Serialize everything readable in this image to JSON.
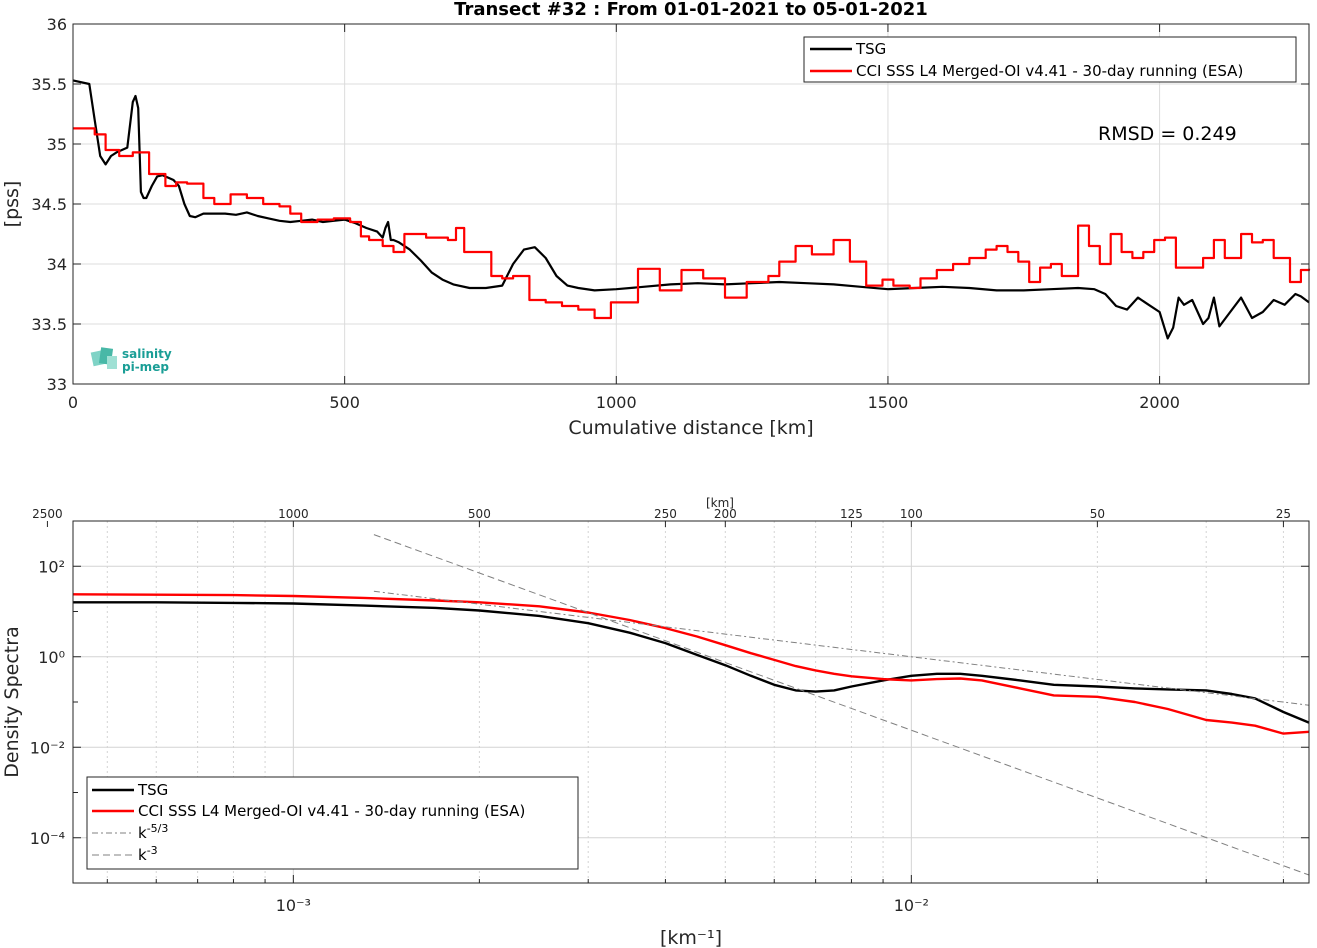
{
  "chart_data": [
    {
      "type": "line",
      "title": "Transect #32 : From 01-01-2021 to 05-01-2021",
      "xlabel": "Cumulative distance [km]",
      "ylabel": "[pss]",
      "xlim": [
        0,
        2275
      ],
      "ylim": [
        33,
        36
      ],
      "xticks": [
        "0",
        "500",
        "1000",
        "1500",
        "2000"
      ],
      "yticks": [
        "33",
        "33.5",
        "34",
        "34.5",
        "35",
        "35.5",
        "36"
      ],
      "grid": true,
      "legend_position": "top-right",
      "annotation": "RMSD = 0.249",
      "logo_text": [
        "salinity",
        "pi-mep"
      ],
      "series": [
        {
          "name": "TSG",
          "color": "#000000",
          "x": [
            0,
            30,
            40,
            50,
            60,
            70,
            80,
            90,
            100,
            110,
            115,
            120,
            125,
            130,
            135,
            145,
            155,
            165,
            175,
            185,
            195,
            205,
            215,
            225,
            240,
            260,
            280,
            300,
            320,
            340,
            360,
            380,
            400,
            420,
            440,
            460,
            480,
            500,
            520,
            540,
            560,
            570,
            575,
            580,
            585,
            590,
            600,
            620,
            640,
            660,
            680,
            700,
            730,
            760,
            790,
            810,
            830,
            850,
            870,
            890,
            910,
            930,
            960,
            1000,
            1050,
            1100,
            1150,
            1200,
            1250,
            1300,
            1350,
            1400,
            1450,
            1500,
            1550,
            1600,
            1650,
            1700,
            1750,
            1800,
            1850,
            1880,
            1900,
            1920,
            1940,
            1960,
            1980,
            2000,
            2015,
            2025,
            2035,
            2045,
            2060,
            2080,
            2090,
            2100,
            2110,
            2130,
            2150,
            2170,
            2190,
            2210,
            2230,
            2250,
            2260,
            2275
          ],
          "y": [
            35.53,
            35.5,
            35.2,
            34.9,
            34.83,
            34.9,
            34.93,
            34.95,
            34.97,
            35.35,
            35.4,
            35.3,
            34.6,
            34.55,
            34.55,
            34.65,
            34.73,
            34.74,
            34.72,
            34.7,
            34.65,
            34.5,
            34.4,
            34.39,
            34.42,
            34.42,
            34.42,
            34.41,
            34.43,
            34.4,
            34.38,
            34.36,
            34.35,
            34.36,
            34.37,
            34.35,
            34.36,
            34.37,
            34.34,
            34.3,
            34.27,
            34.22,
            34.3,
            34.35,
            34.2,
            34.2,
            34.18,
            34.12,
            34.03,
            33.93,
            33.87,
            33.83,
            33.8,
            33.8,
            33.82,
            34.0,
            34.12,
            34.14,
            34.05,
            33.9,
            33.82,
            33.8,
            33.78,
            33.79,
            33.81,
            33.83,
            33.84,
            33.83,
            33.84,
            33.85,
            33.84,
            33.83,
            33.81,
            33.79,
            33.8,
            33.81,
            33.8,
            33.78,
            33.78,
            33.79,
            33.8,
            33.79,
            33.75,
            33.65,
            33.62,
            33.72,
            33.66,
            33.6,
            33.38,
            33.47,
            33.72,
            33.66,
            33.7,
            33.5,
            33.55,
            33.72,
            33.48,
            33.6,
            33.72,
            33.55,
            33.6,
            33.7,
            33.66,
            33.75,
            33.73,
            33.68
          ]
        },
        {
          "name": "CCI SSS L4 Merged-OI v4.41 - 30-day running (ESA)",
          "color": "#ff0000",
          "step": true,
          "x": [
            0,
            40,
            60,
            85,
            110,
            140,
            170,
            190,
            210,
            240,
            260,
            290,
            320,
            350,
            380,
            400,
            420,
            450,
            480,
            510,
            530,
            545,
            570,
            590,
            610,
            650,
            690,
            705,
            720,
            770,
            790,
            810,
            840,
            870,
            900,
            930,
            960,
            990,
            1040,
            1080,
            1120,
            1160,
            1200,
            1240,
            1280,
            1300,
            1330,
            1360,
            1400,
            1430,
            1460,
            1490,
            1510,
            1540,
            1560,
            1590,
            1620,
            1650,
            1680,
            1700,
            1720,
            1740,
            1760,
            1780,
            1800,
            1820,
            1850,
            1870,
            1890,
            1910,
            1930,
            1950,
            1970,
            1990,
            2010,
            2030,
            2060,
            2080,
            2100,
            2120,
            2150,
            2170,
            2190,
            2210,
            2240,
            2260,
            2275
          ],
          "y": [
            35.13,
            35.08,
            34.95,
            34.9,
            34.93,
            34.75,
            34.65,
            34.68,
            34.67,
            34.55,
            34.5,
            34.58,
            34.55,
            34.5,
            34.48,
            34.42,
            34.35,
            34.37,
            34.38,
            34.35,
            34.23,
            34.2,
            34.15,
            34.1,
            34.25,
            34.22,
            34.2,
            34.3,
            34.1,
            33.9,
            33.88,
            33.9,
            33.7,
            33.68,
            33.65,
            33.62,
            33.55,
            33.68,
            33.96,
            33.78,
            33.95,
            33.88,
            33.72,
            33.85,
            33.9,
            34.02,
            34.15,
            34.08,
            34.2,
            34.02,
            33.82,
            33.87,
            33.82,
            33.8,
            33.88,
            33.95,
            34.0,
            34.05,
            34.12,
            34.15,
            34.1,
            34.02,
            33.85,
            33.97,
            34.0,
            33.9,
            34.32,
            34.15,
            34.0,
            34.25,
            34.1,
            34.05,
            34.1,
            34.2,
            34.22,
            33.97,
            33.97,
            34.05,
            34.2,
            34.05,
            34.25,
            34.18,
            34.2,
            34.05,
            33.85,
            33.95,
            33.96
          ]
        }
      ]
    },
    {
      "type": "line",
      "title": "",
      "xlabel": "[km⁻¹]",
      "ylabel": "Density Spectra",
      "x_scale": "log",
      "y_scale": "log",
      "xlim": [
        0.00044,
        0.044
      ],
      "ylim": [
        1e-05,
        1000
      ],
      "xticks": [
        0.001,
        0.01
      ],
      "xtick_labels": [
        "10⁻³",
        "10⁻²"
      ],
      "ytick_labels": [
        "10²",
        "10⁰",
        "10⁻²",
        "10⁻⁴"
      ],
      "ytick_values": [
        100,
        1,
        0.01,
        0.0001
      ],
      "top_axis_label": "[km]",
      "top_axis_ticks": [
        "2500",
        "1000",
        "500",
        "250",
        "200",
        "125",
        "100",
        "50",
        "25"
      ],
      "top_axis_values_km": [
        2500,
        1000,
        500,
        250,
        200,
        125,
        100,
        50,
        25
      ],
      "grid": true,
      "legend_position": "bottom-left",
      "series": [
        {
          "name": "TSG",
          "color": "#000000",
          "x": [
            0.00044,
            0.0006,
            0.0008,
            0.001,
            0.0013,
            0.0017,
            0.002,
            0.0025,
            0.003,
            0.0035,
            0.004,
            0.0045,
            0.005,
            0.0055,
            0.006,
            0.0065,
            0.007,
            0.0075,
            0.008,
            0.009,
            0.01,
            0.011,
            0.012,
            0.013,
            0.015,
            0.017,
            0.02,
            0.023,
            0.026,
            0.03,
            0.033,
            0.036,
            0.04,
            0.044
          ],
          "y": [
            16,
            16,
            15.5,
            15,
            13.5,
            12,
            10.5,
            8,
            5.5,
            3.4,
            2.0,
            1.1,
            0.65,
            0.38,
            0.24,
            0.18,
            0.17,
            0.18,
            0.22,
            0.3,
            0.38,
            0.42,
            0.42,
            0.38,
            0.3,
            0.24,
            0.22,
            0.2,
            0.19,
            0.18,
            0.15,
            0.12,
            0.06,
            0.035
          ]
        },
        {
          "name": "CCI SSS L4 Merged-OI v4.41 - 30-day running (ESA)",
          "color": "#ff0000",
          "x": [
            0.00044,
            0.0006,
            0.0008,
            0.001,
            0.0013,
            0.0017,
            0.002,
            0.0025,
            0.003,
            0.0035,
            0.004,
            0.0045,
            0.005,
            0.0055,
            0.006,
            0.0065,
            0.007,
            0.0075,
            0.008,
            0.009,
            0.01,
            0.011,
            0.012,
            0.013,
            0.015,
            0.017,
            0.02,
            0.023,
            0.026,
            0.03,
            0.033,
            0.036,
            0.04,
            0.044
          ],
          "y": [
            24,
            23.5,
            23,
            22,
            20,
            17.5,
            16,
            13,
            9.5,
            6.5,
            4.3,
            2.8,
            1.8,
            1.2,
            0.85,
            0.62,
            0.5,
            0.42,
            0.37,
            0.32,
            0.3,
            0.32,
            0.33,
            0.3,
            0.2,
            0.14,
            0.13,
            0.1,
            0.07,
            0.04,
            0.035,
            0.03,
            0.02,
            0.022
          ]
        },
        {
          "name": "k-5/3",
          "color": "#808080",
          "dash": "dashdot",
          "x": [
            0.00135,
            0.044
          ],
          "y": [
            28,
            0.085
          ]
        },
        {
          "name": "k-3",
          "color": "#808080",
          "dash": "dashed",
          "x": [
            0.00135,
            0.044
          ],
          "y": [
            500,
            1.5e-05
          ]
        }
      ]
    }
  ]
}
